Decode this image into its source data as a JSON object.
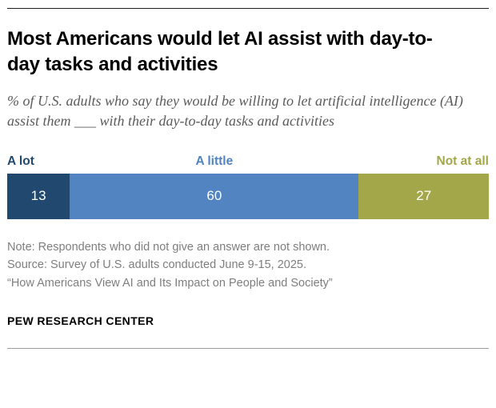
{
  "header": {
    "title": "Most Americans would let AI assist with day-to-day tasks and activities",
    "subtitle": "% of U.S. adults who say they would be willing to let artificial intelligence (AI) assist them ___ with their day-to-day tasks and activities"
  },
  "chart_data": {
    "type": "bar",
    "stacked": true,
    "orientation": "horizontal",
    "total": 100,
    "value_text_color": "#ffffff",
    "segments": [
      {
        "label": "A lot",
        "value": 13,
        "color": "#21486e"
      },
      {
        "label": "A little",
        "value": 60,
        "color": "#5184c1"
      },
      {
        "label": "Not at all",
        "value": 27,
        "color": "#a3a74a"
      }
    ]
  },
  "notes": {
    "line1": "Note: Respondents who did not give an answer are not shown.",
    "line2": "Source: Survey of U.S. adults conducted June 9-15, 2025.",
    "line3": "“How Americans View AI and Its Impact on People and Society”"
  },
  "footer": {
    "brand": "PEW RESEARCH CENTER"
  }
}
